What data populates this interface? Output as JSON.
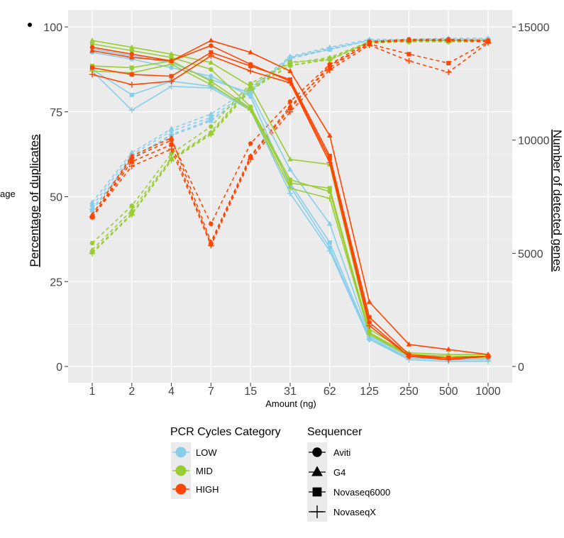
{
  "chart_data": {
    "type": "line",
    "xlabel": "Amount (ng)",
    "ylabel_left": "Percentage of duplicates",
    "ylabel_right": "Number of detected genes",
    "cropped_label": "age",
    "categories": [
      "1",
      "2",
      "4",
      "7",
      "15",
      "31",
      "62",
      "125",
      "250",
      "500",
      "1000"
    ],
    "ylim_left": [
      0,
      100
    ],
    "ylim_right": [
      0,
      15000
    ],
    "yticks_left": [
      "0",
      "25",
      "50",
      "75",
      "100"
    ],
    "yticks_right": [
      "0",
      "5000",
      "10000",
      "15000"
    ],
    "legend": {
      "color_title": "PCR Cycles Category",
      "color_entries": [
        {
          "label": "LOW",
          "color": "#87CEEB"
        },
        {
          "label": "MID",
          "color": "#9ACD32"
        },
        {
          "label": "HIGH",
          "color": "#FF4500"
        }
      ],
      "shape_title": "Sequencer",
      "shape_entries": [
        {
          "label": "Aviti",
          "shape": "circle"
        },
        {
          "label": "G4",
          "shape": "triangle"
        },
        {
          "label": "Novaseq6000",
          "shape": "square"
        },
        {
          "label": "NovaseqX",
          "shape": "plus"
        }
      ]
    },
    "series": [
      {
        "name": "LOW Aviti duplicates",
        "axis": "left",
        "dash": false,
        "color": "#87CEEB",
        "shape": "circle",
        "values": [
          92.5,
          90.5,
          88,
          85.5,
          79.5,
          53,
          35,
          8,
          2.5,
          2,
          2
        ]
      },
      {
        "name": "LOW G4 duplicates",
        "axis": "left",
        "dash": false,
        "color": "#87CEEB",
        "shape": "triangle",
        "values": [
          93.5,
          91.5,
          89.5,
          84.5,
          80.5,
          58,
          42,
          9,
          3,
          2.5,
          2.5
        ]
      },
      {
        "name": "LOW Novaseq6000 duplicates",
        "axis": "left",
        "dash": false,
        "color": "#87CEEB",
        "shape": "square",
        "values": [
          87.5,
          80,
          84,
          82.5,
          76,
          54,
          36.5,
          8.5,
          2.5,
          2,
          2
        ]
      },
      {
        "name": "LOW NovaseqX duplicates",
        "axis": "left",
        "dash": false,
        "color": "#87CEEB",
        "shape": "plus",
        "values": [
          87,
          75.5,
          82.5,
          82,
          75.5,
          51,
          34,
          8,
          2,
          1.5,
          1.5
        ]
      },
      {
        "name": "MID Aviti duplicates",
        "axis": "left",
        "dash": false,
        "color": "#9ACD32",
        "shape": "circle",
        "values": [
          95,
          93,
          91,
          87.5,
          76.5,
          55,
          51.5,
          10,
          3.5,
          3,
          3
        ]
      },
      {
        "name": "MID G4 duplicates",
        "axis": "left",
        "dash": false,
        "color": "#9ACD32",
        "shape": "triangle",
        "values": [
          96,
          94,
          92,
          89.5,
          82.5,
          61,
          59.5,
          11,
          4,
          3.5,
          3.5
        ]
      },
      {
        "name": "MID Novaseq6000 duplicates",
        "axis": "left",
        "dash": false,
        "color": "#9ACD32",
        "shape": "square",
        "values": [
          88.5,
          88,
          90,
          84,
          76,
          54,
          52.5,
          10,
          3,
          2.5,
          3
        ]
      },
      {
        "name": "MID NovaseqX duplicates",
        "axis": "left",
        "dash": false,
        "color": "#9ACD32",
        "shape": "plus",
        "values": [
          87,
          86.5,
          89,
          83,
          75.5,
          52.5,
          49.5,
          9.5,
          3,
          2.5,
          2.5
        ]
      },
      {
        "name": "HIGH Aviti duplicates",
        "axis": "left",
        "dash": false,
        "color": "#FF4500",
        "shape": "circle",
        "values": [
          94,
          92,
          90,
          94.5,
          89,
          84,
          61,
          13,
          3,
          2.5,
          3
        ]
      },
      {
        "name": "HIGH G4 duplicates",
        "axis": "left",
        "dash": false,
        "color": "#FF4500",
        "shape": "triangle",
        "values": [
          93,
          91,
          90,
          96,
          92.5,
          87,
          68,
          19,
          6.5,
          5,
          3.5
        ]
      },
      {
        "name": "HIGH Novaseq6000 duplicates",
        "axis": "left",
        "dash": false,
        "color": "#FF4500",
        "shape": "square",
        "values": [
          88,
          86,
          85.5,
          92.5,
          88.5,
          84.5,
          62,
          14.5,
          3.5,
          2.5,
          3
        ]
      },
      {
        "name": "HIGH NovaseqX duplicates",
        "axis": "left",
        "dash": false,
        "color": "#FF4500",
        "shape": "plus",
        "values": [
          86,
          83,
          84,
          91.5,
          87,
          83.5,
          60,
          12,
          3,
          2,
          3
        ]
      },
      {
        "name": "LOW Aviti genes",
        "axis": "right",
        "dash": true,
        "color": "#87CEEB",
        "shape": "circle",
        "values": [
          7100,
          9350,
          10400,
          11000,
          12200,
          13650,
          14000,
          14400,
          14450,
          14450,
          14450
        ]
      },
      {
        "name": "LOW G4 genes",
        "axis": "right",
        "dash": true,
        "color": "#87CEEB",
        "shape": "triangle",
        "values": [
          7250,
          9450,
          10500,
          11150,
          12300,
          13700,
          14100,
          14450,
          14450,
          14500,
          14500
        ]
      },
      {
        "name": "LOW Novaseq6000 genes",
        "axis": "right",
        "dash": true,
        "color": "#87CEEB",
        "shape": "square",
        "values": [
          6900,
          9150,
          10200,
          10850,
          12150,
          13600,
          14000,
          14400,
          14400,
          14450,
          14450
        ]
      },
      {
        "name": "LOW NovaseqX genes",
        "axis": "right",
        "dash": true,
        "color": "#87CEEB",
        "shape": "plus",
        "values": [
          6950,
          9200,
          10250,
          10900,
          12100,
          13650,
          14050,
          14400,
          14400,
          14450,
          14450
        ]
      },
      {
        "name": "MID Aviti genes",
        "axis": "right",
        "dash": true,
        "color": "#9ACD32",
        "shape": "circle",
        "values": [
          5450,
          7100,
          9400,
          10600,
          12500,
          13450,
          13550,
          14350,
          14400,
          14400,
          14400
        ]
      },
      {
        "name": "MID G4 genes",
        "axis": "right",
        "dash": true,
        "color": "#9ACD32",
        "shape": "triangle",
        "values": [
          5150,
          6900,
          9200,
          10350,
          12400,
          13400,
          13650,
          14350,
          14400,
          14400,
          14400
        ]
      },
      {
        "name": "MID Novaseq6000 genes",
        "axis": "right",
        "dash": true,
        "color": "#9ACD32",
        "shape": "square",
        "values": [
          5050,
          6750,
          9150,
          10300,
          12300,
          13300,
          13600,
          14300,
          14350,
          14350,
          14350
        ]
      },
      {
        "name": "MID NovaseqX genes",
        "axis": "right",
        "dash": true,
        "color": "#9ACD32",
        "shape": "plus",
        "values": [
          5000,
          6700,
          9100,
          10250,
          12200,
          13300,
          13550,
          14300,
          14350,
          14350,
          14350
        ]
      },
      {
        "name": "HIGH Aviti genes",
        "axis": "right",
        "dash": true,
        "color": "#FF4500",
        "shape": "circle",
        "values": [
          6600,
          9200,
          10000,
          6300,
          9850,
          11700,
          13350,
          14350,
          14450,
          14450,
          14400
        ]
      },
      {
        "name": "HIGH G4 genes",
        "axis": "right",
        "dash": true,
        "color": "#FF4500",
        "shape": "triangle",
        "values": [
          6700,
          9300,
          10100,
          5500,
          9300,
          11500,
          13200,
          14300,
          14400,
          14400,
          14350
        ]
      },
      {
        "name": "HIGH Novaseq6000 genes",
        "axis": "right",
        "dash": true,
        "color": "#FF4500",
        "shape": "square",
        "values": [
          6600,
          9050,
          9800,
          5400,
          9250,
          11400,
          13300,
          14250,
          13800,
          13400,
          14350
        ]
      },
      {
        "name": "HIGH NovaseqX genes",
        "axis": "right",
        "dash": true,
        "color": "#FF4500",
        "shape": "plus",
        "values": [
          6600,
          8850,
          9600,
          5350,
          9150,
          11250,
          13100,
          14200,
          13500,
          13000,
          14300
        ]
      }
    ]
  }
}
